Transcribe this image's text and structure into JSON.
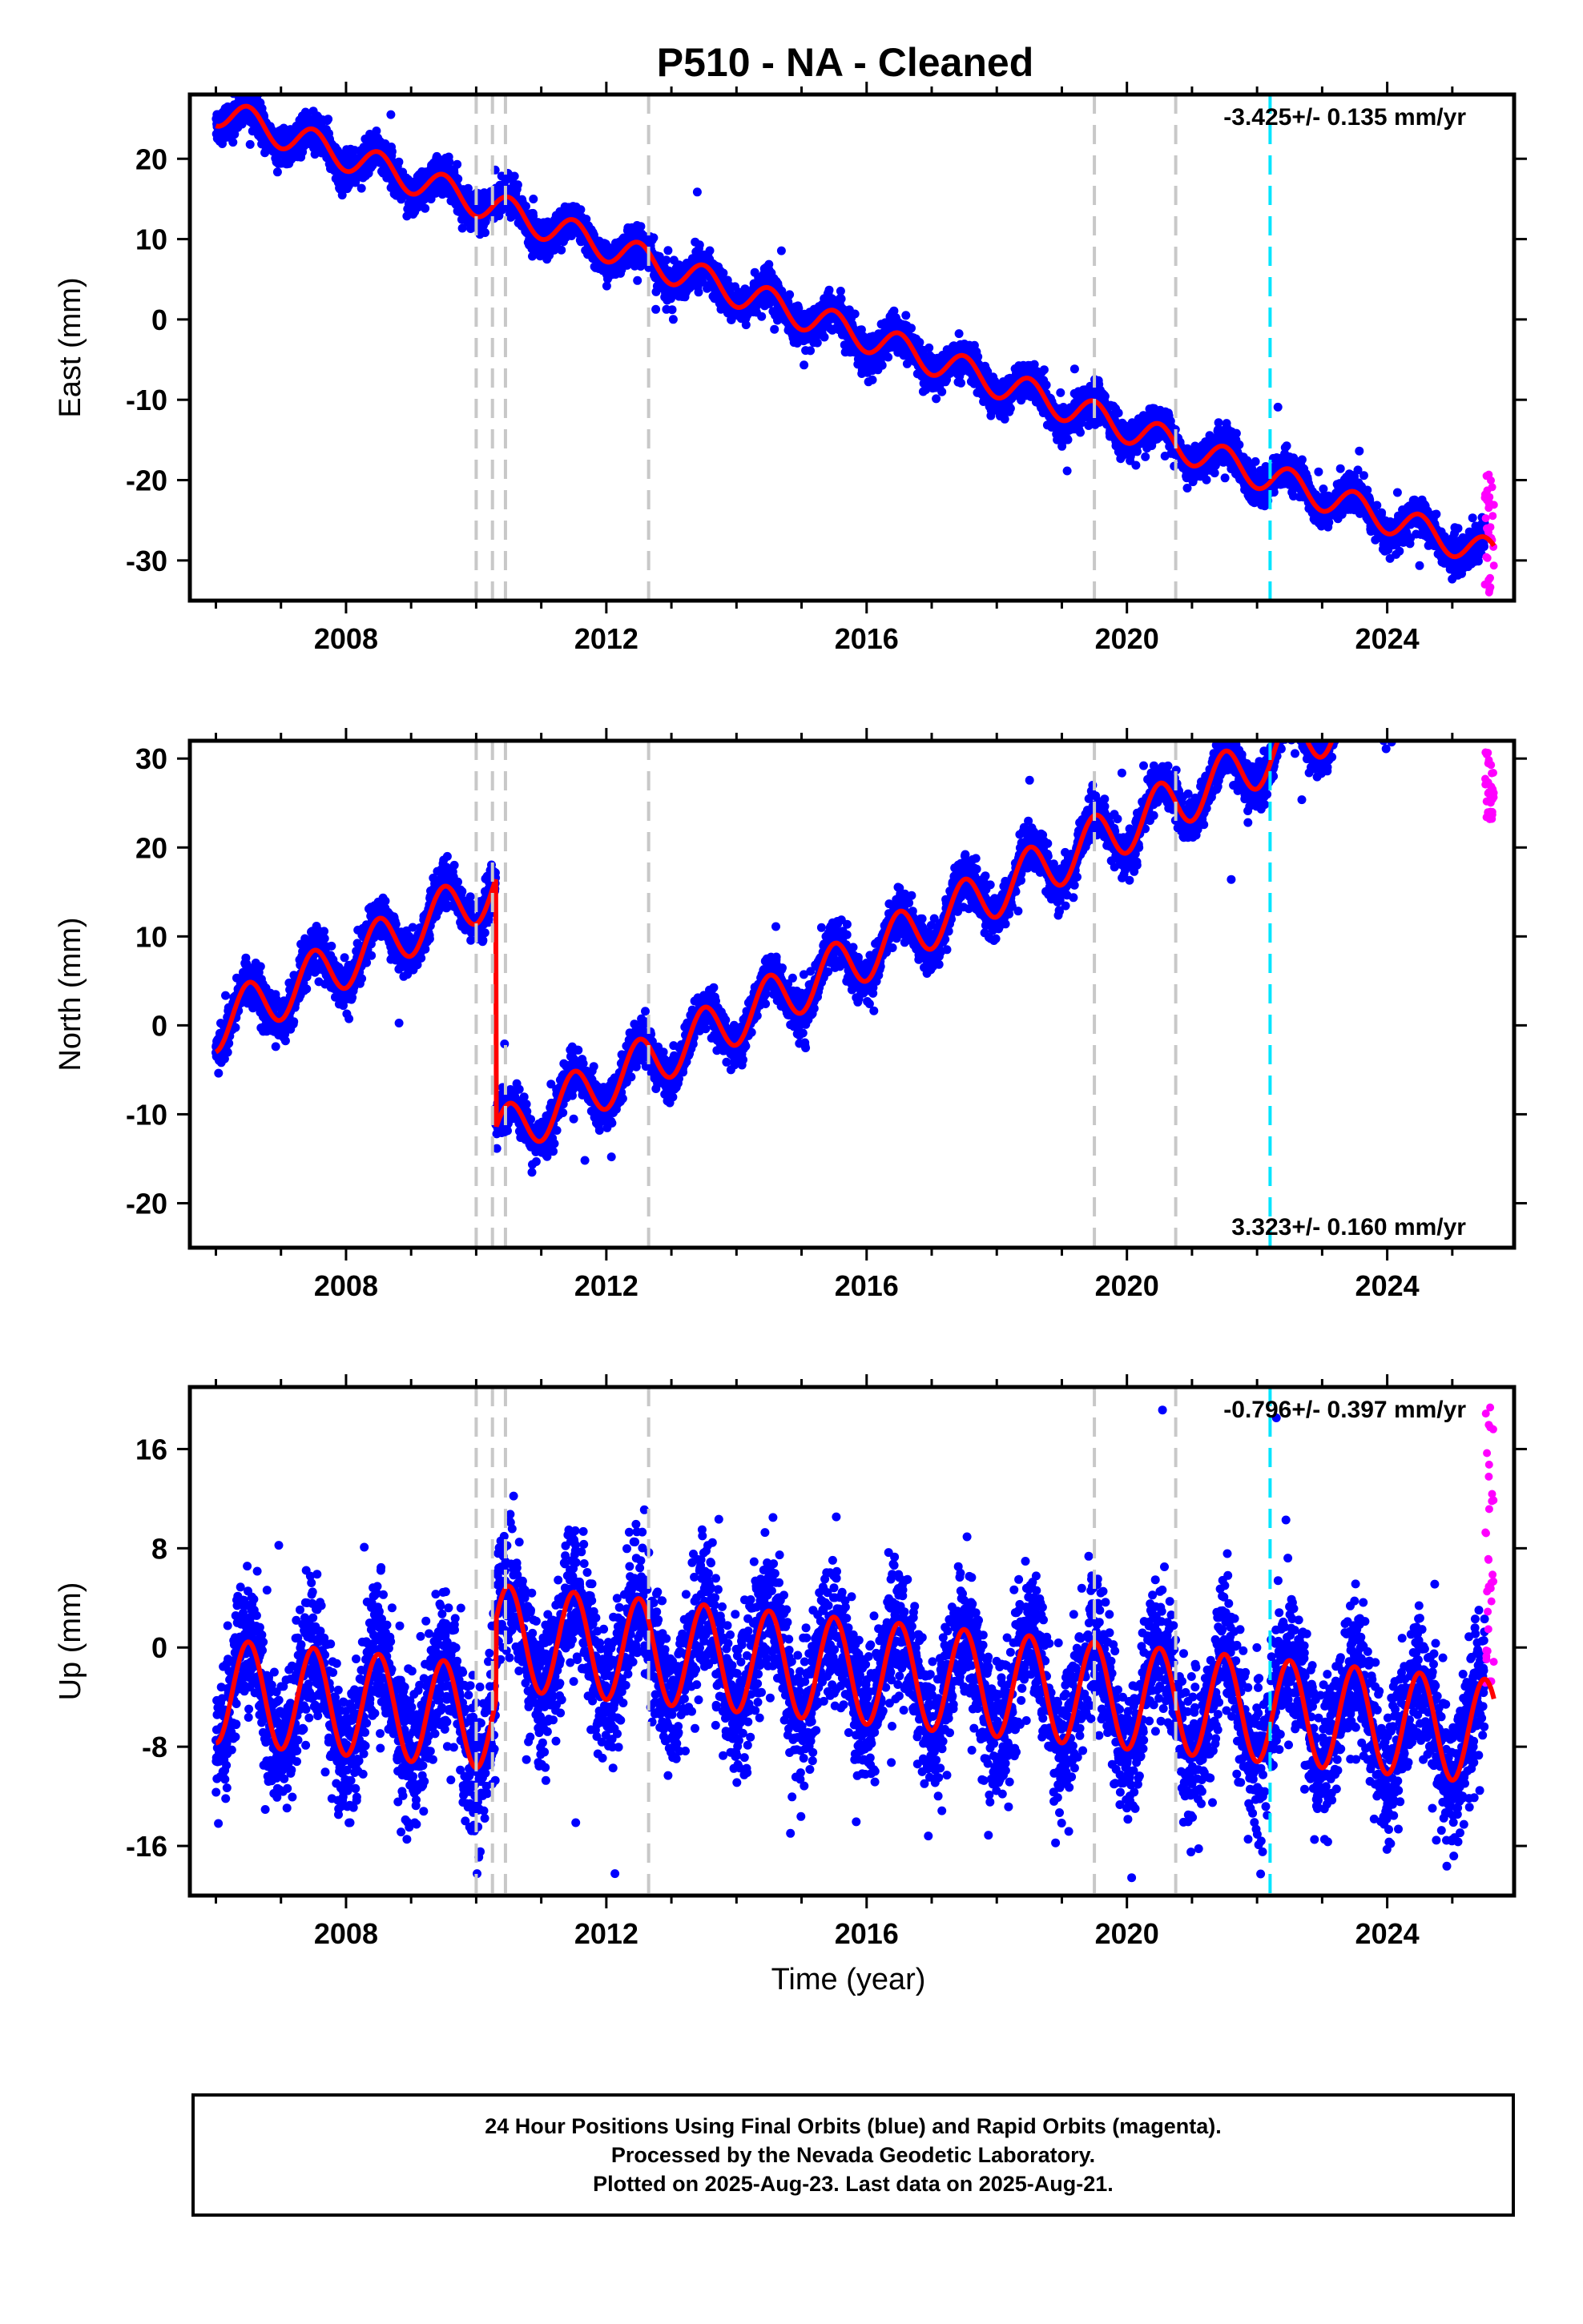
{
  "figure": {
    "title": "P510  - NA - Cleaned",
    "xlabel": "Time (year)"
  },
  "colors": {
    "final_orbits": "#0000ff",
    "rapid_orbits": "#ff00ff",
    "model_fit": "#ff0000",
    "equipment_change": "#c8c8c8",
    "earthquake_marker": "#00e5ff"
  },
  "footer": {
    "line1": "24 Hour Positions Using Final Orbits (blue) and Rapid Orbits (magenta).",
    "line2": "Processed by the Nevada Geodetic Laboratory.",
    "line3": "Plotted on 2025-Aug-23. Last data on 2025-Aug-21."
  },
  "chart_data": [
    {
      "type": "scatter",
      "component": "east",
      "ylabel": "East (mm)",
      "rate_label": "-3.425+/- 0.135 mm/yr",
      "rate_position": "top-right",
      "xlim": [
        2005.6,
        2025.95
      ],
      "ylim": [
        -35,
        28
      ],
      "x_ticks": [
        2008,
        2012,
        2016,
        2020,
        2024
      ],
      "y_ticks": [
        -30,
        -20,
        -10,
        0,
        10,
        20
      ],
      "trend": {
        "y0": 26,
        "x0": 2006.0,
        "rate": -2.82,
        "seasonal_amp": 1.9,
        "noise": 1.1
      },
      "offsets": [
        {
          "x": 2010.25,
          "dy": 0
        }
      ],
      "equipment_changes": [
        2010.0,
        2010.25,
        2010.45,
        2012.65,
        2019.5,
        2020.75
      ],
      "earthquakes": [
        2022.2
      ],
      "final_range": [
        2006.0,
        2025.5
      ],
      "rapid_range": [
        2025.5,
        2025.64
      ],
      "rapid_y": [
        -34,
        -19
      ],
      "grid": false
    },
    {
      "type": "scatter",
      "component": "north",
      "ylabel": "North (mm)",
      "rate_label": "3.323+/- 0.160 mm/yr",
      "rate_position": "bottom-right",
      "xlim": [
        2005.6,
        2025.95
      ],
      "ylim": [
        -25,
        32
      ],
      "x_ticks": [
        2008,
        2012,
        2016,
        2020,
        2024
      ],
      "y_ticks": [
        -20,
        -10,
        0,
        10,
        20,
        30
      ],
      "trend": {
        "y0": 0,
        "x0": 2006.0,
        "rate": 3.6,
        "seasonal_amp": 3.0,
        "noise": 1.2
      },
      "offsets": [
        {
          "x": 2010.3,
          "dy": -28
        }
      ],
      "equipment_changes": [
        2010.0,
        2010.25,
        2010.45,
        2012.65,
        2019.5,
        2020.75
      ],
      "earthquakes": [
        2022.2
      ],
      "final_range": [
        2006.0,
        2025.5
      ],
      "rapid_range": [
        2025.5,
        2025.64
      ],
      "rapid_y": [
        23,
        31
      ],
      "grid": false
    },
    {
      "type": "scatter",
      "component": "up",
      "ylabel": "Up (mm)",
      "rate_label": "-0.796+/- 0.397 mm/yr",
      "rate_position": "top-right",
      "xlim": [
        2005.6,
        2025.95
      ],
      "ylim": [
        -20,
        21
      ],
      "x_ticks": [
        2008,
        2012,
        2016,
        2020,
        2024
      ],
      "y_ticks": [
        -16,
        -8,
        0,
        8,
        16
      ],
      "trend": {
        "y0": -3.5,
        "x0": 2006.0,
        "rate": -0.5,
        "seasonal_amp": 4.2,
        "noise": 2.8
      },
      "offsets": [
        {
          "x": 2010.3,
          "dy": 6.5
        }
      ],
      "equipment_changes": [
        2010.0,
        2010.25,
        2010.45,
        2012.65,
        2019.5,
        2020.75
      ],
      "earthquakes": [
        2022.2
      ],
      "final_range": [
        2006.0,
        2025.5
      ],
      "rapid_range": [
        2025.5,
        2025.64
      ],
      "rapid_y": [
        -3,
        20
      ],
      "grid": false
    }
  ]
}
